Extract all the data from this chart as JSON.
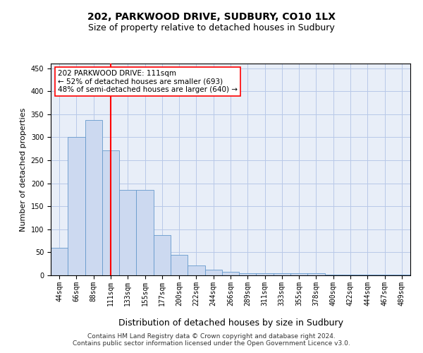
{
  "title1": "202, PARKWOOD DRIVE, SUDBURY, CO10 1LX",
  "title2": "Size of property relative to detached houses in Sudbury",
  "xlabel": "Distribution of detached houses by size in Sudbury",
  "ylabel": "Number of detached properties",
  "categories": [
    "44sqm",
    "66sqm",
    "88sqm",
    "111sqm",
    "133sqm",
    "155sqm",
    "177sqm",
    "200sqm",
    "222sqm",
    "244sqm",
    "266sqm",
    "289sqm",
    "311sqm",
    "333sqm",
    "355sqm",
    "378sqm",
    "400sqm",
    "422sqm",
    "444sqm",
    "467sqm",
    "489sqm"
  ],
  "values": [
    60,
    300,
    338,
    272,
    185,
    185,
    88,
    45,
    22,
    12,
    7,
    4,
    4,
    4,
    4,
    4,
    2,
    2,
    2,
    2,
    2
  ],
  "bar_color": "#ccd9f0",
  "bar_edge_color": "#6699cc",
  "vline_x": 3,
  "vline_color": "red",
  "annotation_text": "202 PARKWOOD DRIVE: 111sqm\n← 52% of detached houses are smaller (693)\n48% of semi-detached houses are larger (640) →",
  "annotation_box_color": "white",
  "annotation_box_edge": "red",
  "ylim": [
    0,
    460
  ],
  "yticks": [
    0,
    50,
    100,
    150,
    200,
    250,
    300,
    350,
    400,
    450
  ],
  "grid_color": "#b8c8e8",
  "background_color": "#e8eef8",
  "footer1": "Contains HM Land Registry data © Crown copyright and database right 2024.",
  "footer2": "Contains public sector information licensed under the Open Government Licence v3.0.",
  "title1_fontsize": 10,
  "title2_fontsize": 9,
  "xlabel_fontsize": 9,
  "ylabel_fontsize": 8,
  "tick_fontsize": 7,
  "annotation_fontsize": 7.5,
  "footer_fontsize": 6.5
}
